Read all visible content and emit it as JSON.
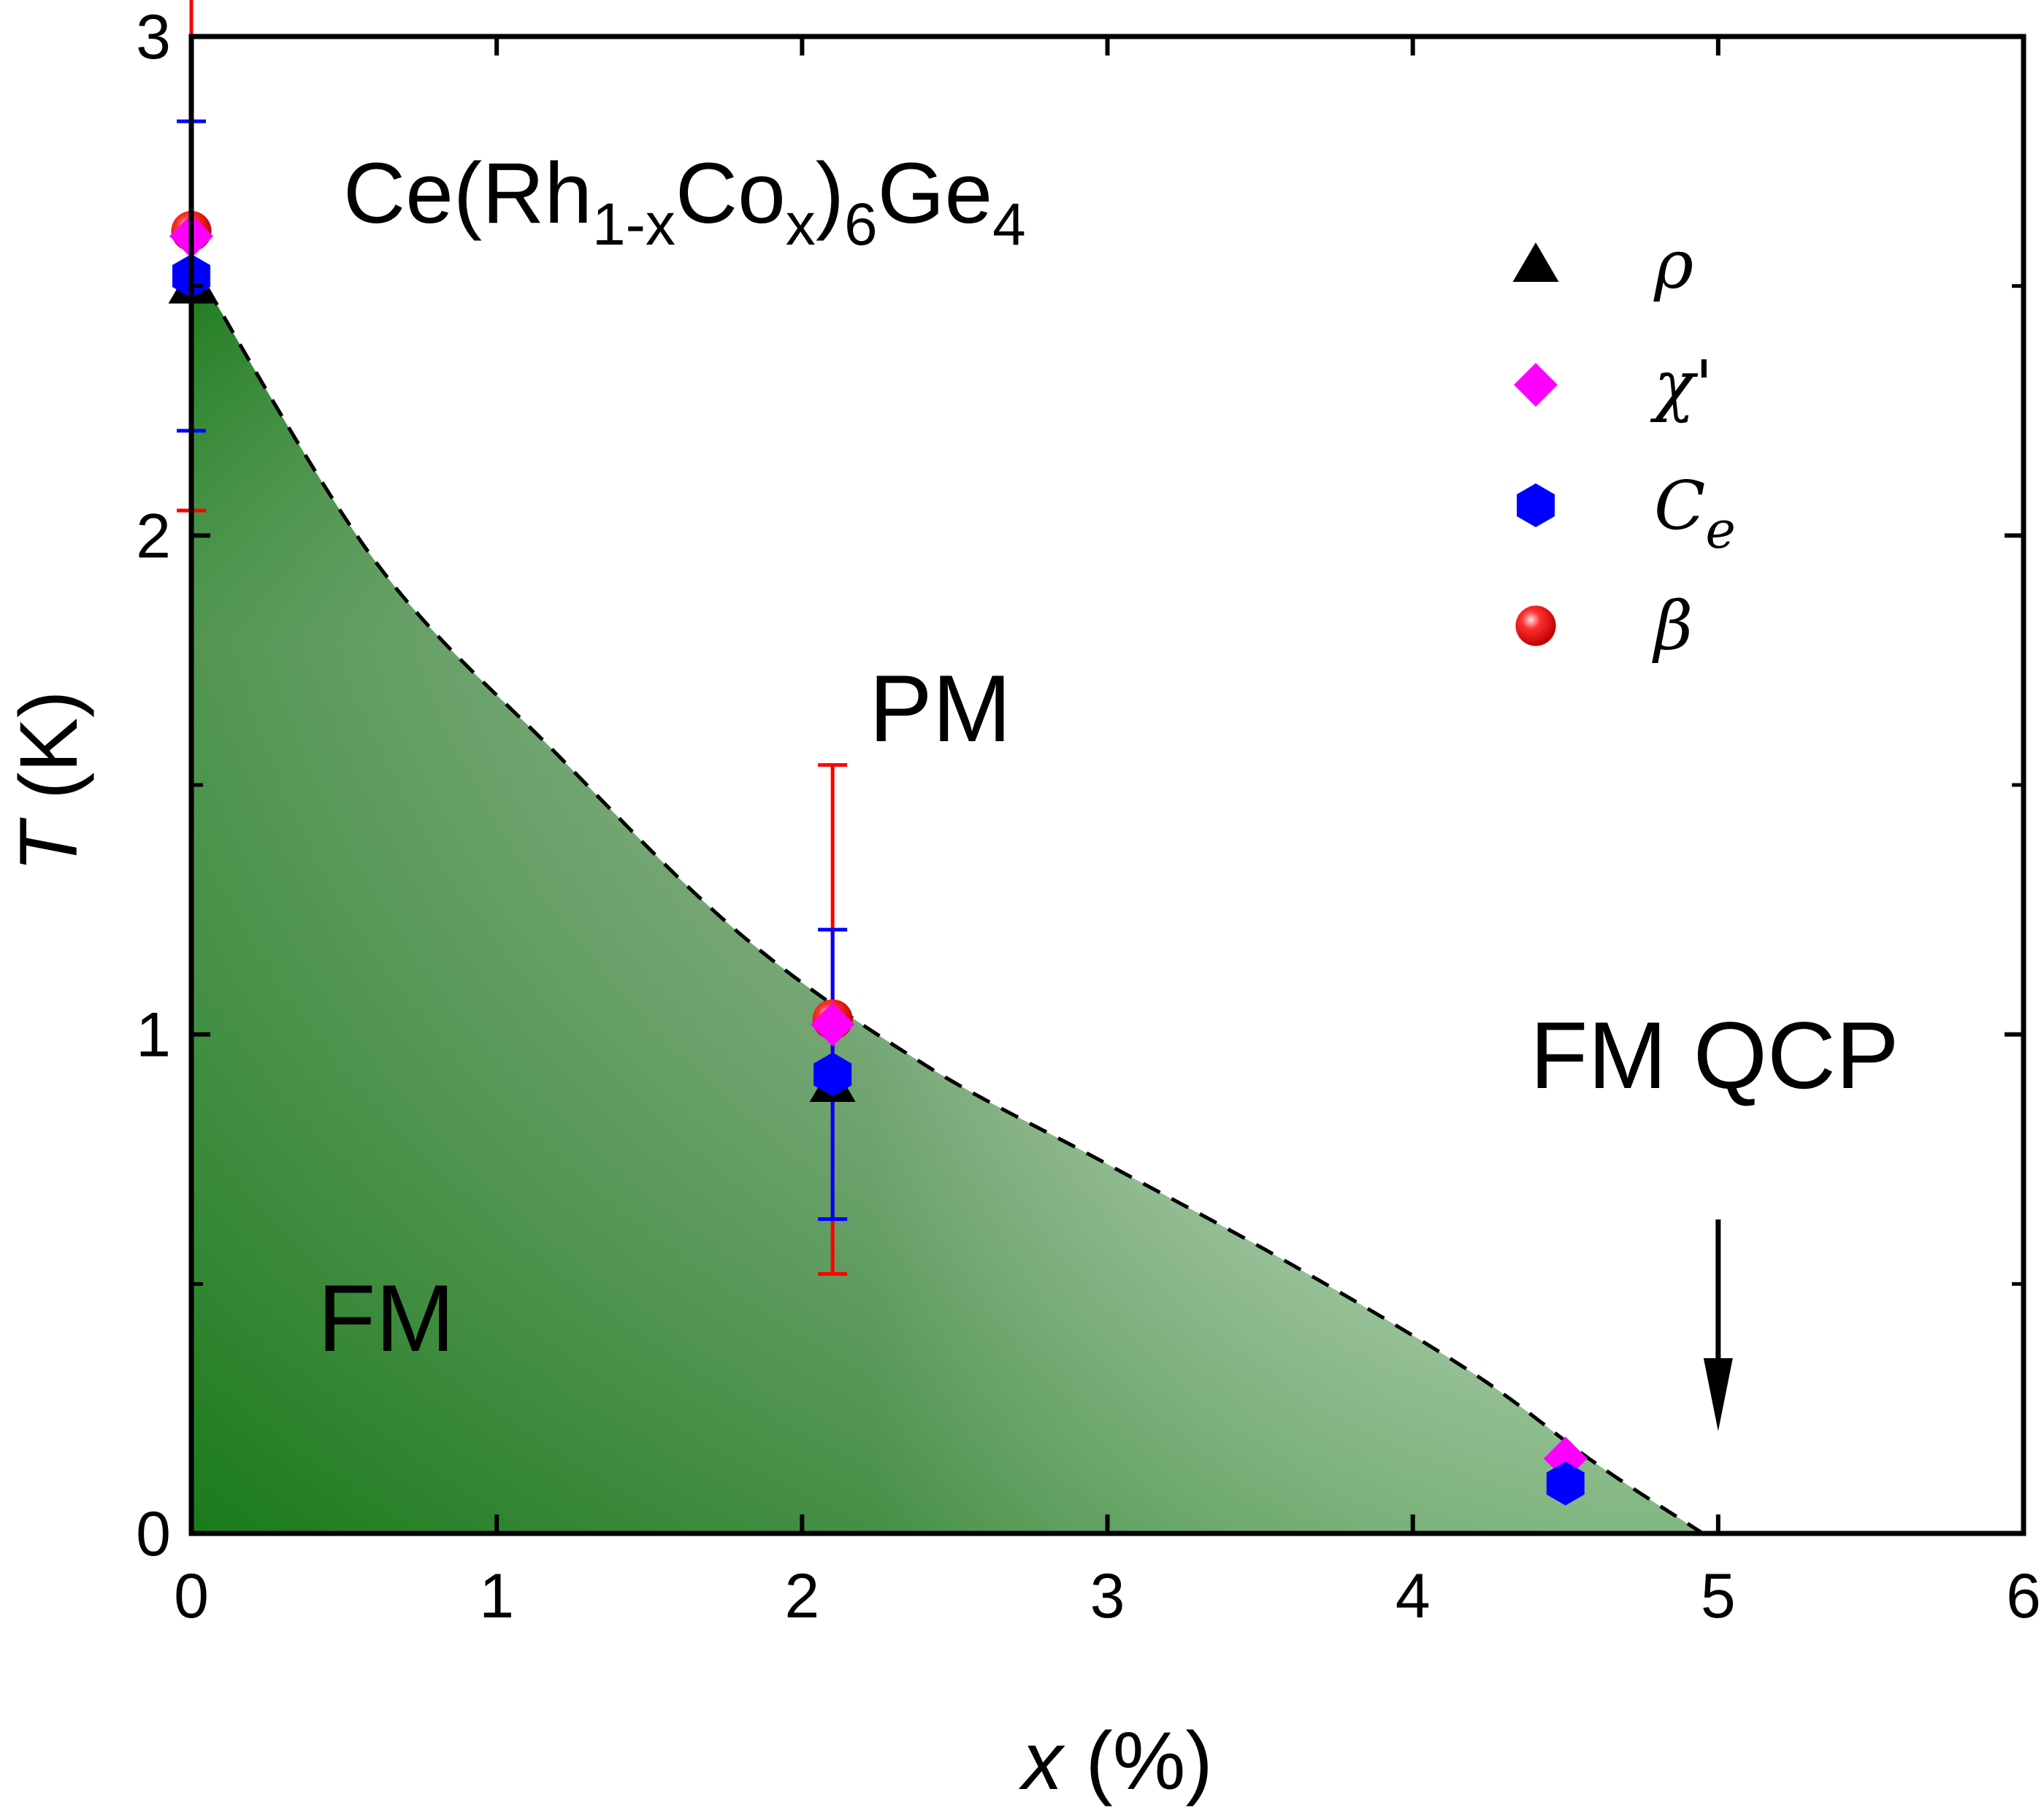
{
  "chart_data": {
    "type": "scatter",
    "title": "",
    "formula": {
      "base": "Ce(Rh",
      "sub1": "1-x",
      "mid": "Co",
      "sub2": "x",
      "close": ")",
      "sub3": "6",
      "tail": "Ge",
      "sub4": "4"
    },
    "xlabel": {
      "var": "x",
      "unit": " (%)"
    },
    "ylabel": {
      "var": "T",
      "unit": " (K)"
    },
    "xlim": [
      0,
      6
    ],
    "ylim": [
      0,
      3
    ],
    "xticks": [
      "0",
      "1",
      "2",
      "3",
      "4",
      "5",
      "6"
    ],
    "yticks": [
      "0",
      "1",
      "2",
      "3"
    ],
    "series": [
      {
        "name": "ρ",
        "marker": "triangle",
        "color": "#000000",
        "points": [
          {
            "x": 0,
            "y": 2.5
          },
          {
            "x": 2.1,
            "y": 0.9
          }
        ]
      },
      {
        "name": "χ'",
        "marker": "diamond",
        "color": "#ff00ff",
        "points": [
          {
            "x": 0,
            "y": 2.6
          },
          {
            "x": 2.1,
            "y": 1.02
          },
          {
            "x": 4.5,
            "y": 0.15
          }
        ]
      },
      {
        "name": "C",
        "name_sub": "e",
        "marker": "hexagon",
        "color": "#0000ff",
        "points": [
          {
            "x": 0,
            "y": 2.52,
            "err": 0.31
          },
          {
            "x": 2.1,
            "y": 0.92,
            "err": 0.29
          },
          {
            "x": 4.5,
            "y": 0.1
          }
        ]
      },
      {
        "name": "β",
        "marker": "sphere",
        "color": "#ff0000",
        "points": [
          {
            "x": 0,
            "y": 2.61,
            "err": 0.56
          },
          {
            "x": 2.1,
            "y": 1.03,
            "err": 0.51
          }
        ]
      }
    ],
    "phase_boundary": {
      "style": "dashed",
      "points": [
        [
          0,
          2.55
        ],
        [
          0.6,
          1.95
        ],
        [
          1.2,
          1.56
        ],
        [
          1.8,
          1.2
        ],
        [
          2.4,
          0.94
        ],
        [
          3.0,
          0.74
        ],
        [
          3.6,
          0.54
        ],
        [
          4.2,
          0.32
        ],
        [
          4.6,
          0.14
        ],
        [
          4.95,
          0.0
        ]
      ]
    },
    "regions": [
      "FM",
      "PM"
    ],
    "annotation": "FM QCP",
    "annotation_x": 5,
    "legend_position": "top-right",
    "grid": false
  }
}
